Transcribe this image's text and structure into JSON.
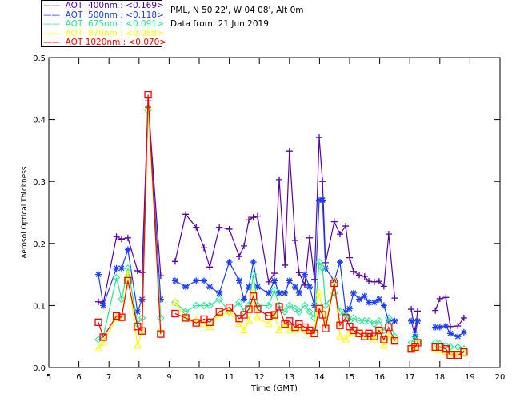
{
  "header": {
    "station": "PML, N 50 22', W 04 08', Alt 0m",
    "date": "Data from: 21 Jun 2019"
  },
  "chart_data": {
    "type": "scatter",
    "title": "",
    "xlabel": "Time (GMT)",
    "ylabel": "Aerosol Optical Thickness",
    "xlim": [
      5,
      20
    ],
    "ylim": [
      0,
      0.5
    ],
    "xticks": [
      "5",
      "6",
      "7",
      "8",
      "9",
      "10",
      "11",
      "12",
      "13",
      "14",
      "15",
      "16",
      "17",
      "18",
      "19",
      "20"
    ],
    "yticks": [
      "0.0",
      "0.1",
      "0.2",
      "0.3",
      "0.4",
      "0.5"
    ],
    "x": [
      6.65,
      6.81,
      7.25,
      7.42,
      7.63,
      7.95,
      8.1,
      8.3,
      8.72,
      9.2,
      9.55,
      9.9,
      10.16,
      10.35,
      10.67,
      11.0,
      11.33,
      11.49,
      11.65,
      11.8,
      11.94,
      12.31,
      12.5,
      12.66,
      12.85,
      13.0,
      13.19,
      13.32,
      13.51,
      13.67,
      13.83,
      13.99,
      14.1,
      14.2,
      14.49,
      14.68,
      14.87,
      15.0,
      15.13,
      15.32,
      15.5,
      15.64,
      15.82,
      15.98,
      16.14,
      16.3,
      16.5,
      17.05,
      17.18,
      17.26,
      17.85,
      18.0,
      18.2,
      18.35,
      18.6,
      18.8
    ],
    "series": [
      {
        "name": "AOT  400nm : <0.169>",
        "color": "#5a00a8",
        "marker": "plus",
        "values": [
          0.106,
          0.103,
          0.211,
          0.207,
          0.209,
          0.156,
          0.153,
          0.43,
          0.148,
          0.171,
          0.247,
          0.226,
          0.193,
          0.162,
          0.226,
          0.223,
          0.179,
          0.196,
          0.238,
          0.242,
          0.244,
          0.138,
          0.152,
          0.303,
          0.165,
          0.349,
          0.205,
          0.153,
          0.133,
          0.209,
          0.142,
          0.371,
          0.3,
          0.169,
          0.235,
          0.215,
          0.228,
          0.177,
          0.155,
          0.149,
          0.147,
          0.139,
          0.138,
          0.139,
          0.131,
          0.215,
          0.112,
          0.094,
          0.057,
          0.091,
          0.092,
          0.111,
          0.113,
          0.066,
          0.067,
          0.08
        ]
      },
      {
        "name": "AOT  500nm : <0.118>",
        "color": "#1a3cff",
        "marker": "asterisk",
        "values": [
          0.15,
          0.1,
          0.16,
          0.16,
          0.19,
          0.09,
          0.11,
          0.42,
          0.11,
          0.14,
          0.13,
          0.14,
          0.14,
          0.13,
          0.12,
          0.17,
          0.14,
          0.11,
          0.13,
          0.17,
          0.13,
          0.12,
          0.14,
          0.12,
          0.12,
          0.14,
          0.13,
          0.12,
          0.15,
          0.13,
          0.1,
          0.27,
          0.27,
          0.16,
          0.14,
          0.17,
          0.09,
          0.095,
          0.12,
          0.11,
          0.115,
          0.105,
          0.105,
          0.11,
          0.1,
          0.075,
          0.075,
          0.075,
          0.05,
          0.075,
          0.065,
          0.065,
          0.067,
          0.055,
          0.05,
          0.057
        ]
      },
      {
        "name": "AOT  675nm : <0.091>",
        "color": "#20e890",
        "marker": "diamond",
        "values": [
          0.045,
          0.05,
          0.145,
          0.11,
          0.16,
          0.07,
          0.08,
          0.415,
          0.08,
          0.105,
          0.09,
          0.1,
          0.1,
          0.1,
          0.11,
          0.09,
          0.105,
          0.09,
          0.1,
          0.15,
          0.1,
          0.1,
          0.125,
          0.1,
          0.09,
          0.1,
          0.095,
          0.09,
          0.1,
          0.09,
          0.08,
          0.17,
          0.16,
          0.1,
          0.12,
          0.09,
          0.085,
          0.075,
          0.08,
          0.075,
          0.075,
          0.075,
          0.07,
          0.075,
          0.06,
          0.08,
          0.05,
          0.04,
          0.05,
          0.04,
          0.04,
          0.038,
          0.035,
          0.033,
          0.033,
          0.03
        ]
      },
      {
        "name": "AOT  870nm : <0.068>",
        "color": "#ffff00",
        "marker": "triangle",
        "values": [
          0.03,
          0.04,
          0.08,
          0.08,
          0.15,
          0.035,
          0.06,
          0.42,
          0.06,
          0.105,
          0.08,
          0.075,
          0.07,
          0.065,
          0.085,
          0.09,
          0.07,
          0.06,
          0.075,
          0.12,
          0.08,
          0.07,
          0.085,
          0.06,
          0.07,
          0.06,
          0.06,
          0.065,
          0.06,
          0.055,
          0.06,
          0.12,
          0.09,
          0.07,
          0.14,
          0.05,
          0.045,
          0.055,
          0.055,
          0.055,
          0.05,
          0.05,
          0.045,
          0.06,
          0.035,
          0.05,
          0.045,
          0.03,
          0.03,
          0.04,
          0.03,
          0.028,
          0.025,
          0.022,
          0.022,
          0.022
        ]
      },
      {
        "name": "AOT 1020nm : <0.070>",
        "color": "#ff0000",
        "marker": "square",
        "values": [
          0.073,
          0.049,
          0.083,
          0.081,
          0.14,
          0.066,
          0.059,
          0.44,
          0.054,
          0.087,
          0.08,
          0.072,
          0.078,
          0.073,
          0.09,
          0.097,
          0.079,
          0.085,
          0.094,
          0.115,
          0.094,
          0.083,
          0.085,
          0.098,
          0.07,
          0.075,
          0.065,
          0.07,
          0.065,
          0.06,
          0.055,
          0.095,
          0.085,
          0.063,
          0.136,
          0.068,
          0.08,
          0.066,
          0.06,
          0.055,
          0.05,
          0.055,
          0.05,
          0.06,
          0.045,
          0.065,
          0.043,
          0.03,
          0.033,
          0.04,
          0.033,
          0.033,
          0.03,
          0.02,
          0.02,
          0.025
        ]
      }
    ],
    "legend": "top-left"
  }
}
